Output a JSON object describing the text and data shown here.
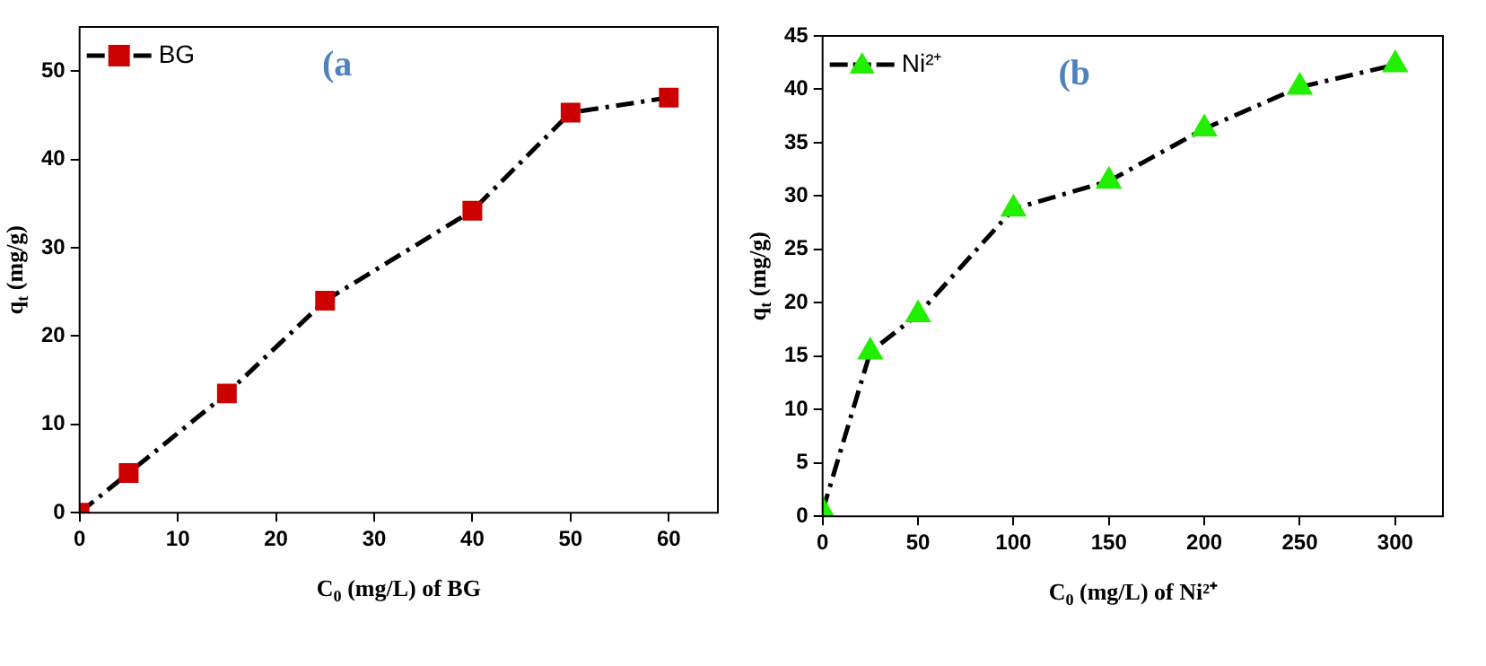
{
  "chart_data": [
    {
      "type": "line",
      "xlabel": "C$_{0}$ (mg/L) of BG",
      "ylabel": "q$_{t}$ (mg/g)",
      "annotations": [
        "(a"
      ],
      "x": [
        0,
        5,
        15,
        25,
        40,
        50,
        60
      ],
      "series": [
        {
          "name": "BG",
          "color": "#cc0000",
          "values": [
            0,
            4.5,
            13.5,
            24,
            34.2,
            45.3,
            47
          ]
        }
      ],
      "xlim": [
        0,
        65
      ],
      "xticks": [
        0,
        10,
        20,
        30,
        40,
        50,
        60
      ],
      "ylim": [
        0,
        55
      ],
      "yticks": [
        0,
        10,
        20,
        30,
        40,
        50
      ],
      "grid": false,
      "legend": "top left",
      "marker": "square",
      "line_style": "dashed"
    },
    {
      "type": "line",
      "xlabel": "C$_{0}$ (mg/L) of Ni²⁺",
      "ylabel": "q$_{t}$ (mg/g)",
      "annotations": [
        "(b"
      ],
      "x": [
        0,
        25,
        50,
        100,
        150,
        200,
        250,
        300
      ],
      "series": [
        {
          "name": "Ni²⁺",
          "color": "#22ee00",
          "values": [
            0.5,
            15.4,
            18.9,
            28.8,
            31.4,
            36.3,
            40.2,
            42.3
          ]
        }
      ],
      "xlim": [
        0,
        325
      ],
      "xticks": [
        0,
        50,
        100,
        150,
        200,
        250,
        300
      ],
      "ylim": [
        0,
        45
      ],
      "yticks": [
        0,
        5,
        10,
        15,
        20,
        25,
        30,
        35,
        40,
        45
      ],
      "grid": false,
      "legend": "top left",
      "marker": "triangle",
      "line_style": "dashed"
    }
  ]
}
